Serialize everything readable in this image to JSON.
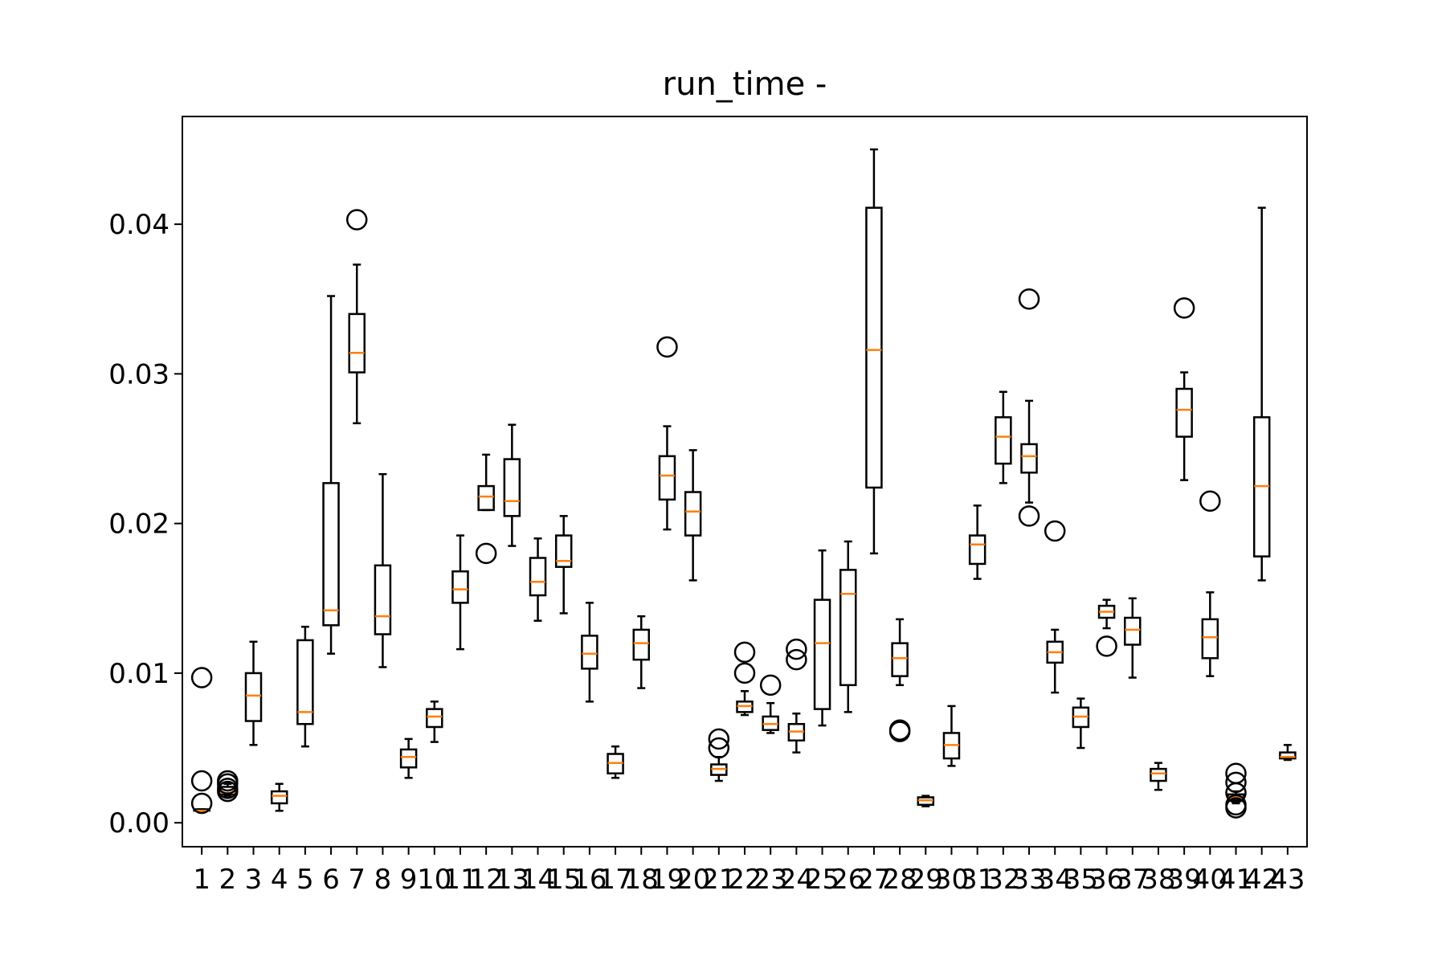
{
  "chart_data": {
    "type": "box",
    "title": "run_time -",
    "xlabel": "",
    "ylabel": "",
    "ylim": [
      -0.0016,
      0.0472
    ],
    "yticks": [
      "0.00",
      "0.01",
      "0.02",
      "0.03",
      "0.04"
    ],
    "ytick_values": [
      0.0,
      0.01,
      0.02,
      0.03,
      0.04
    ],
    "grid": false,
    "legend": "none",
    "colors": {
      "box": "#000000",
      "median": "#ff7f0e",
      "frame": "#000000"
    },
    "categories": [
      "1",
      "2",
      "3",
      "4",
      "5",
      "6",
      "7",
      "8",
      "9",
      "10",
      "11",
      "12",
      "13",
      "14",
      "15",
      "16",
      "17",
      "18",
      "19",
      "20",
      "21",
      "22",
      "23",
      "24",
      "25",
      "26",
      "27",
      "28",
      "29",
      "30",
      "31",
      "32",
      "33",
      "34",
      "35",
      "36",
      "37",
      "38",
      "39",
      "40",
      "41",
      "42",
      "43"
    ],
    "boxes": [
      {
        "label": "1",
        "whislo": 0.0008,
        "q1": 0.0008,
        "med": 0.0008,
        "q3": 0.0009,
        "whishi": 0.0009,
        "fliers": [
          0.0097,
          0.0028,
          0.0013
        ]
      },
      {
        "label": "2",
        "whislo": 0.0018,
        "q1": 0.0019,
        "med": 0.002,
        "q3": 0.0024,
        "whishi": 0.0026,
        "fliers": [
          0.0028,
          0.0026,
          0.0023,
          0.0021
        ]
      },
      {
        "label": "3",
        "whislo": 0.0052,
        "q1": 0.0068,
        "med": 0.0085,
        "q3": 0.01,
        "whishi": 0.0121,
        "fliers": []
      },
      {
        "label": "4",
        "whislo": 0.0008,
        "q1": 0.0013,
        "med": 0.0018,
        "q3": 0.0021,
        "whishi": 0.0026,
        "fliers": []
      },
      {
        "label": "5",
        "whislo": 0.0051,
        "q1": 0.0066,
        "med": 0.0074,
        "q3": 0.0122,
        "whishi": 0.0131,
        "fliers": []
      },
      {
        "label": "6",
        "whislo": 0.0113,
        "q1": 0.0132,
        "med": 0.0142,
        "q3": 0.0227,
        "whishi": 0.0352,
        "fliers": []
      },
      {
        "label": "7",
        "whislo": 0.0267,
        "q1": 0.0301,
        "med": 0.0314,
        "q3": 0.034,
        "whishi": 0.0373,
        "fliers": [
          0.0403
        ]
      },
      {
        "label": "8",
        "whislo": 0.0104,
        "q1": 0.0126,
        "med": 0.0138,
        "q3": 0.0172,
        "whishi": 0.0233,
        "fliers": []
      },
      {
        "label": "9",
        "whislo": 0.003,
        "q1": 0.0037,
        "med": 0.0044,
        "q3": 0.0049,
        "whishi": 0.0056,
        "fliers": []
      },
      {
        "label": "10",
        "whislo": 0.0054,
        "q1": 0.0064,
        "med": 0.0071,
        "q3": 0.0076,
        "whishi": 0.0081,
        "fliers": []
      },
      {
        "label": "11",
        "whislo": 0.0116,
        "q1": 0.0147,
        "med": 0.0156,
        "q3": 0.0168,
        "whishi": 0.0192,
        "fliers": []
      },
      {
        "label": "12",
        "whislo": 0.0209,
        "q1": 0.0209,
        "med": 0.0218,
        "q3": 0.0225,
        "whishi": 0.0246,
        "fliers": [
          0.018
        ]
      },
      {
        "label": "13",
        "whislo": 0.0185,
        "q1": 0.0205,
        "med": 0.0215,
        "q3": 0.0243,
        "whishi": 0.0266,
        "fliers": []
      },
      {
        "label": "14",
        "whislo": 0.0135,
        "q1": 0.0152,
        "med": 0.0161,
        "q3": 0.0177,
        "whishi": 0.019,
        "fliers": []
      },
      {
        "label": "15",
        "whislo": 0.014,
        "q1": 0.0171,
        "med": 0.0175,
        "q3": 0.0192,
        "whishi": 0.0205,
        "fliers": []
      },
      {
        "label": "16",
        "whislo": 0.0081,
        "q1": 0.0103,
        "med": 0.0113,
        "q3": 0.0125,
        "whishi": 0.0147,
        "fliers": []
      },
      {
        "label": "17",
        "whislo": 0.003,
        "q1": 0.0033,
        "med": 0.004,
        "q3": 0.0046,
        "whishi": 0.0051,
        "fliers": []
      },
      {
        "label": "18",
        "whislo": 0.009,
        "q1": 0.0109,
        "med": 0.012,
        "q3": 0.0129,
        "whishi": 0.0138,
        "fliers": []
      },
      {
        "label": "19",
        "whislo": 0.0196,
        "q1": 0.0216,
        "med": 0.0232,
        "q3": 0.0245,
        "whishi": 0.0265,
        "fliers": [
          0.0318
        ]
      },
      {
        "label": "20",
        "whislo": 0.0162,
        "q1": 0.0192,
        "med": 0.0208,
        "q3": 0.0221,
        "whishi": 0.0249,
        "fliers": []
      },
      {
        "label": "21",
        "whislo": 0.0028,
        "q1": 0.0032,
        "med": 0.0036,
        "q3": 0.0039,
        "whishi": 0.0044,
        "fliers": [
          0.0056,
          0.005
        ]
      },
      {
        "label": "22",
        "whislo": 0.0072,
        "q1": 0.0074,
        "med": 0.0078,
        "q3": 0.0081,
        "whishi": 0.0088,
        "fliers": [
          0.0114,
          0.01
        ]
      },
      {
        "label": "23",
        "whislo": 0.006,
        "q1": 0.0062,
        "med": 0.0066,
        "q3": 0.0071,
        "whishi": 0.008,
        "fliers": [
          0.0092
        ]
      },
      {
        "label": "24",
        "whislo": 0.0047,
        "q1": 0.0055,
        "med": 0.0061,
        "q3": 0.0066,
        "whishi": 0.0073,
        "fliers": [
          0.0116,
          0.0109
        ]
      },
      {
        "label": "25",
        "whislo": 0.0065,
        "q1": 0.0076,
        "med": 0.012,
        "q3": 0.0149,
        "whishi": 0.0182,
        "fliers": []
      },
      {
        "label": "26",
        "whislo": 0.0074,
        "q1": 0.0092,
        "med": 0.0153,
        "q3": 0.0169,
        "whishi": 0.0188,
        "fliers": []
      },
      {
        "label": "27",
        "whislo": 0.018,
        "q1": 0.0224,
        "med": 0.0316,
        "q3": 0.0411,
        "whishi": 0.045,
        "fliers": []
      },
      {
        "label": "28",
        "whislo": 0.0092,
        "q1": 0.0098,
        "med": 0.011,
        "q3": 0.012,
        "whishi": 0.0136,
        "fliers": [
          0.0062,
          0.0061
        ]
      },
      {
        "label": "29",
        "whislo": 0.0011,
        "q1": 0.0012,
        "med": 0.0015,
        "q3": 0.0017,
        "whishi": 0.0018,
        "fliers": []
      },
      {
        "label": "30",
        "whislo": 0.0038,
        "q1": 0.0043,
        "med": 0.0052,
        "q3": 0.006,
        "whishi": 0.0078,
        "fliers": []
      },
      {
        "label": "31",
        "whislo": 0.0163,
        "q1": 0.0173,
        "med": 0.0186,
        "q3": 0.0192,
        "whishi": 0.0212,
        "fliers": []
      },
      {
        "label": "32",
        "whislo": 0.0227,
        "q1": 0.024,
        "med": 0.0258,
        "q3": 0.0271,
        "whishi": 0.0288,
        "fliers": []
      },
      {
        "label": "33",
        "whislo": 0.0214,
        "q1": 0.0234,
        "med": 0.0245,
        "q3": 0.0253,
        "whishi": 0.0282,
        "fliers": [
          0.035,
          0.0205
        ]
      },
      {
        "label": "34",
        "whislo": 0.0087,
        "q1": 0.0107,
        "med": 0.0114,
        "q3": 0.0121,
        "whishi": 0.0129,
        "fliers": [
          0.0195
        ]
      },
      {
        "label": "35",
        "whislo": 0.005,
        "q1": 0.0064,
        "med": 0.0071,
        "q3": 0.0077,
        "whishi": 0.0083,
        "fliers": []
      },
      {
        "label": "36",
        "whislo": 0.013,
        "q1": 0.0137,
        "med": 0.0141,
        "q3": 0.0145,
        "whishi": 0.0149,
        "fliers": [
          0.0118
        ]
      },
      {
        "label": "37",
        "whislo": 0.0097,
        "q1": 0.0119,
        "med": 0.0129,
        "q3": 0.0137,
        "whishi": 0.015,
        "fliers": []
      },
      {
        "label": "38",
        "whislo": 0.0022,
        "q1": 0.0028,
        "med": 0.0033,
        "q3": 0.0036,
        "whishi": 0.004,
        "fliers": []
      },
      {
        "label": "39",
        "whislo": 0.0229,
        "q1": 0.0258,
        "med": 0.0276,
        "q3": 0.029,
        "whishi": 0.0301,
        "fliers": [
          0.0344
        ]
      },
      {
        "label": "40",
        "whislo": 0.0098,
        "q1": 0.011,
        "med": 0.0124,
        "q3": 0.0136,
        "whishi": 0.0154,
        "fliers": [
          0.0215
        ]
      },
      {
        "label": "41",
        "whislo": 0.0013,
        "q1": 0.0015,
        "med": 0.0017,
        "q3": 0.0019,
        "whishi": 0.0021,
        "fliers": [
          0.0033,
          0.0027,
          0.002,
          0.0012,
          0.001
        ]
      },
      {
        "label": "42",
        "whislo": 0.0162,
        "q1": 0.0178,
        "med": 0.0225,
        "q3": 0.0271,
        "whishi": 0.0411,
        "fliers": []
      },
      {
        "label": "43",
        "whislo": 0.0042,
        "q1": 0.0043,
        "med": 0.0044,
        "q3": 0.0047,
        "whishi": 0.0052,
        "fliers": []
      }
    ]
  }
}
